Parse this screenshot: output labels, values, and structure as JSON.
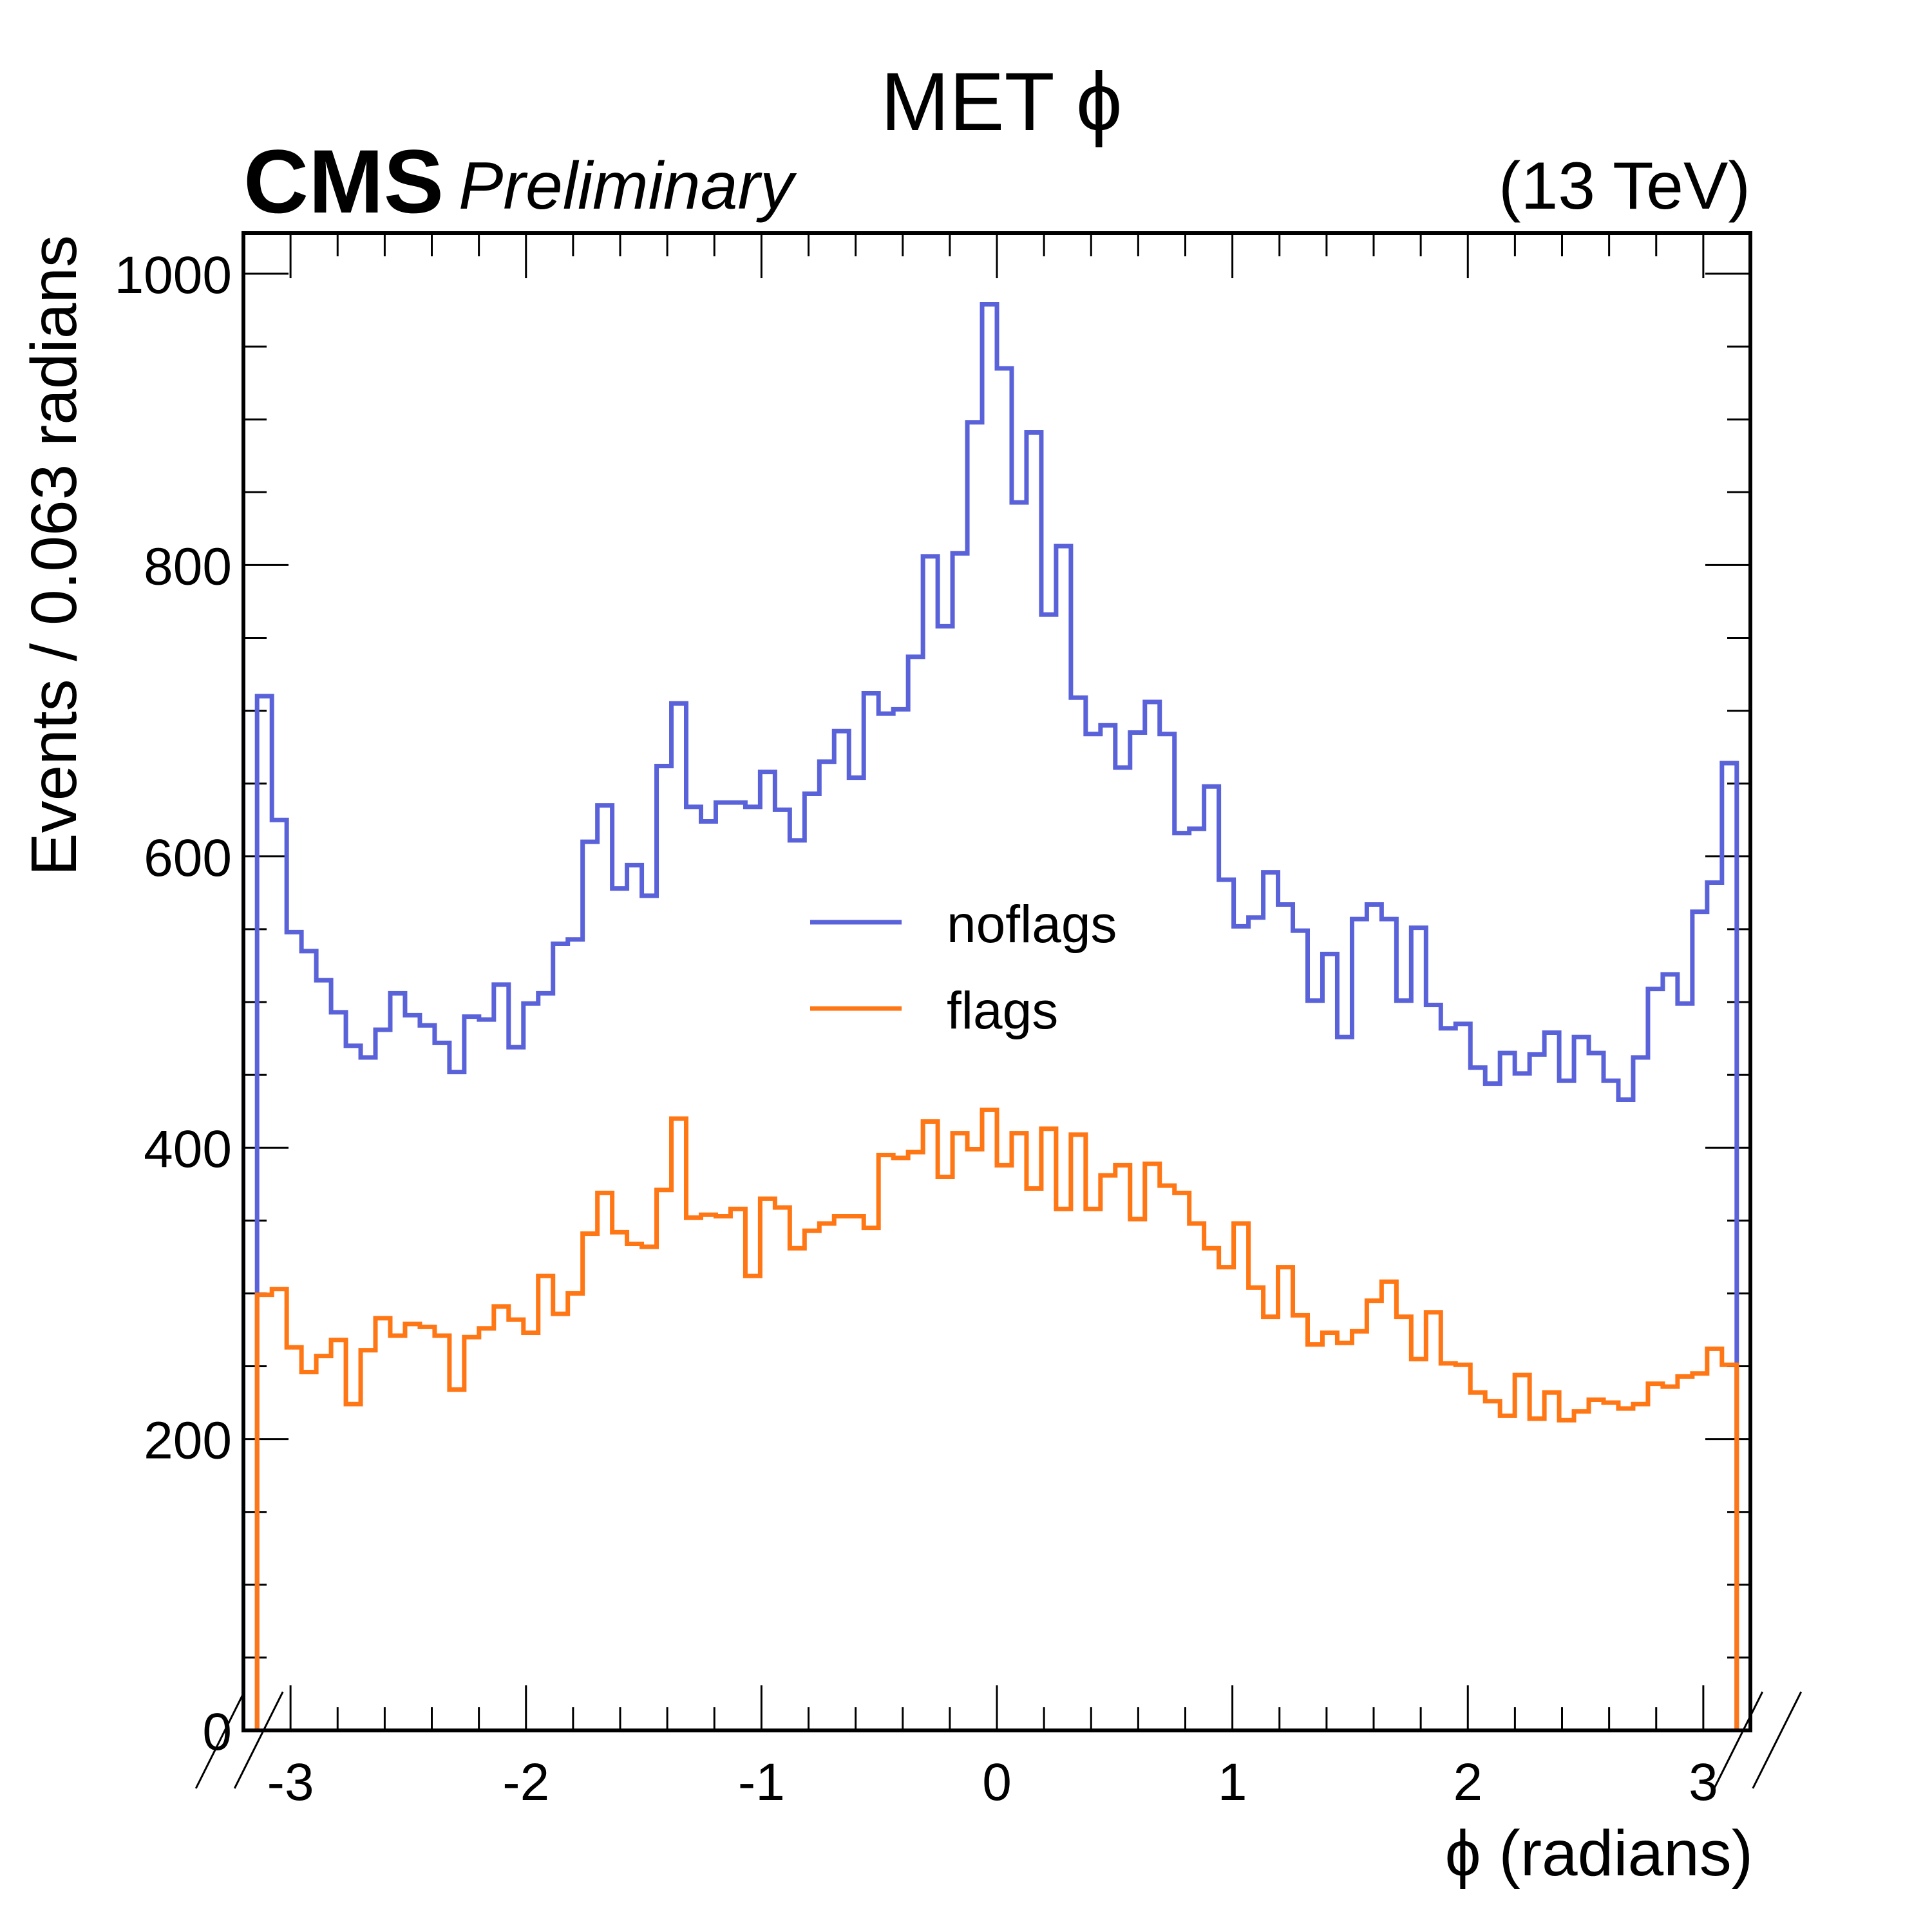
{
  "chart_data": {
    "type": "histogram",
    "title": "MET ϕ",
    "experiment": "CMS",
    "experiment_label": "Preliminary",
    "energy": "(13 TeV)",
    "xlabel": "ϕ (radians)",
    "ylabel": "Events / 0.063 radians",
    "xlim": [
      -3.2,
      3.2
    ],
    "ylim": [
      0,
      1000
    ],
    "x_ticks": [
      -3,
      -2,
      -1,
      0,
      1,
      2,
      3
    ],
    "x_tick_labels": [
      "-3",
      "-2",
      "-1",
      "0",
      "1",
      "2",
      "3"
    ],
    "y_ticks": [
      0,
      200,
      400,
      600,
      800,
      1000
    ],
    "y_tick_labels": [
      "0",
      "200",
      "400",
      "600",
      "800",
      "1000"
    ],
    "bins": {
      "low": -3.142,
      "high": 3.142,
      "count": 100
    },
    "legend_position": "center",
    "series": [
      {
        "name": "noflags",
        "color": "#5a62d9",
        "values": [
          710,
          625,
          548,
          535,
          515,
          493,
          470,
          462,
          481,
          506,
          491,
          484,
          472,
          452,
          490,
          488,
          512,
          469,
          499,
          506,
          540,
          543,
          610,
          635,
          578,
          594,
          573,
          662,
          705,
          634,
          624,
          637,
          637,
          634,
          658,
          632,
          611,
          643,
          665,
          686,
          654,
          712,
          698,
          701,
          737,
          806,
          758,
          808,
          898,
          979,
          935,
          843,
          891,
          766,
          813,
          709,
          684,
          690,
          661,
          685,
          706,
          684,
          616,
          619,
          648,
          584,
          552,
          558,
          589,
          567,
          549,
          501,
          533,
          476,
          557,
          567,
          557,
          501,
          551,
          498,
          482,
          485,
          455,
          444,
          465,
          451,
          464,
          479,
          446,
          476,
          465,
          446,
          433,
          462,
          509,
          519,
          499,
          562,
          582,
          664
        ]
      },
      {
        "name": "flags",
        "color": "#ff7614",
        "values": [
          299,
          303,
          263,
          246,
          257,
          268,
          224,
          261,
          283,
          271,
          279,
          277,
          271,
          234,
          270,
          276,
          291,
          282,
          273,
          312,
          286,
          300,
          341,
          369,
          342,
          334,
          332,
          371,
          420,
          352,
          354,
          353,
          358,
          312,
          365,
          359,
          331,
          343,
          348,
          353,
          353,
          345,
          395,
          393,
          397,
          418,
          380,
          410,
          399,
          426,
          388,
          410,
          372,
          413,
          358,
          409,
          358,
          381,
          388,
          351,
          389,
          374,
          369,
          348,
          331,
          318,
          348,
          304,
          284,
          318,
          285,
          265,
          273,
          266,
          274,
          295,
          308,
          284,
          255,
          287,
          252,
          251,
          232,
          226,
          216,
          244,
          214,
          232,
          213,
          219,
          227,
          225,
          221,
          224,
          238,
          236,
          243,
          245,
          262,
          251
        ]
      }
    ]
  }
}
